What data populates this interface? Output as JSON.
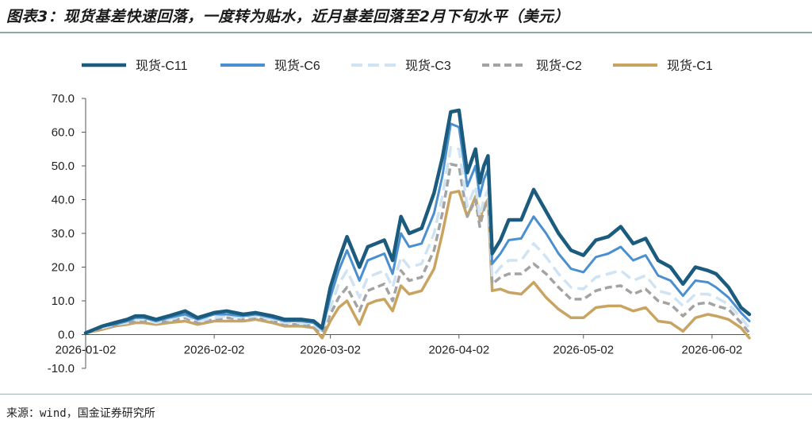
{
  "title": "图表3：现货基差快速回落，一度转为贴水，近月基差回落至2月下旬水平（美元）",
  "source": "来源：wind，国金证券研究所",
  "chart_data": {
    "type": "line",
    "x_tick_labels": [
      "2026-01-02",
      "2026-02-02",
      "2026-03-02",
      "2026-04-02",
      "2026-05-02",
      "2026-06-02"
    ],
    "x_tick_dates": [
      "2026-01-02",
      "2026-02-02",
      "2026-03-02",
      "2026-04-02",
      "2026-05-02",
      "2026-06-02"
    ],
    "y_tick_labels": [
      "70.0",
      "60.0",
      "50.0",
      "40.0",
      "30.0",
      "20.0",
      "10.0",
      "0.0",
      "-10.0"
    ],
    "ylim": [
      -10,
      70
    ],
    "xlim": [
      "2026-01-02",
      "2026-06-11"
    ],
    "grid": false,
    "legend_position": "top",
    "x": [
      "2026-01-02",
      "2026-01-06",
      "2026-01-09",
      "2026-01-12",
      "2026-01-14",
      "2026-01-16",
      "2026-01-19",
      "2026-01-22",
      "2026-01-26",
      "2026-01-29",
      "2026-02-02",
      "2026-02-05",
      "2026-02-09",
      "2026-02-12",
      "2026-02-16",
      "2026-02-19",
      "2026-02-23",
      "2026-02-26",
      "2026-02-28",
      "2026-03-02",
      "2026-03-04",
      "2026-03-06",
      "2026-03-09",
      "2026-03-11",
      "2026-03-13",
      "2026-03-15",
      "2026-03-17",
      "2026-03-19",
      "2026-03-21",
      "2026-03-24",
      "2026-03-27",
      "2026-03-29",
      "2026-03-31",
      "2026-04-02",
      "2026-04-04",
      "2026-04-06",
      "2026-04-07",
      "2026-04-08",
      "2026-04-09",
      "2026-04-10",
      "2026-04-12",
      "2026-04-14",
      "2026-04-17",
      "2026-04-20",
      "2026-04-23",
      "2026-04-26",
      "2026-04-29",
      "2026-05-02",
      "2026-05-05",
      "2026-05-08",
      "2026-05-11",
      "2026-05-14",
      "2026-05-17",
      "2026-05-20",
      "2026-05-23",
      "2026-05-26",
      "2026-05-29",
      "2026-06-01",
      "2026-06-03",
      "2026-06-06",
      "2026-06-09",
      "2026-06-11"
    ],
    "series": [
      {
        "name": "现货-C11",
        "color": "#1a5b7e",
        "width": 4.5,
        "dash": "",
        "values": [
          0.5,
          2.5,
          3.5,
          4.5,
          5.5,
          5.5,
          4.5,
          5.5,
          7.0,
          5.0,
          6.5,
          7.0,
          6.0,
          6.5,
          5.5,
          4.5,
          4.5,
          4.0,
          2.0,
          14.0,
          22.0,
          29.0,
          20.0,
          26.0,
          27.0,
          28.0,
          22.0,
          35.0,
          30.0,
          31.5,
          42.0,
          52.5,
          66.0,
          66.5,
          48.0,
          55.0,
          45.0,
          50.0,
          53.0,
          24.0,
          28.0,
          34.0,
          34.0,
          43.0,
          36.5,
          30.0,
          25.0,
          23.5,
          28.0,
          29.0,
          32.0,
          27.0,
          28.5,
          22.0,
          20.0,
          15.0,
          20.0,
          19.0,
          18.0,
          14.0,
          8.0,
          6.0
        ]
      },
      {
        "name": "现货-C6",
        "color": "#4a8fd0",
        "width": 3,
        "dash": "",
        "values": [
          0.5,
          2.5,
          3.0,
          4.0,
          5.0,
          5.0,
          4.0,
          5.0,
          6.0,
          4.5,
          6.0,
          6.0,
          5.5,
          6.0,
          5.0,
          4.0,
          4.0,
          3.5,
          1.5,
          11.0,
          19.0,
          25.0,
          16.0,
          22.0,
          23.0,
          24.0,
          18.0,
          30.0,
          26.0,
          27.0,
          36.0,
          47.0,
          62.5,
          61.5,
          44.0,
          50.0,
          41.0,
          46.0,
          49.0,
          21.0,
          24.0,
          28.0,
          28.5,
          35.0,
          30.0,
          24.0,
          19.5,
          18.5,
          23.0,
          24.0,
          26.0,
          22.0,
          23.5,
          17.5,
          16.0,
          11.5,
          16.0,
          15.5,
          14.0,
          11.0,
          6.5,
          4.0
        ]
      },
      {
        "name": "现货-C3",
        "color": "#cfe3f3",
        "width": 3.5,
        "dash": "14,7",
        "values": [
          0.5,
          2.0,
          3.0,
          3.5,
          4.5,
          4.5,
          3.5,
          4.5,
          5.5,
          4.0,
          5.0,
          5.5,
          5.0,
          5.5,
          4.5,
          3.5,
          3.5,
          3.0,
          1.0,
          8.0,
          15.0,
          19.0,
          11.0,
          17.0,
          18.0,
          19.0,
          14.0,
          23.0,
          20.0,
          21.0,
          30.0,
          41.0,
          55.5,
          55.0,
          38.0,
          44.0,
          35.0,
          40.0,
          43.0,
          17.0,
          20.0,
          22.0,
          22.0,
          27.0,
          23.0,
          18.0,
          14.0,
          13.5,
          17.0,
          18.0,
          19.0,
          16.0,
          17.5,
          13.0,
          12.0,
          8.5,
          12.0,
          12.0,
          11.0,
          9.0,
          5.0,
          2.0
        ]
      },
      {
        "name": "现货-C2",
        "color": "#a3a3a3",
        "width": 3.5,
        "dash": "9,5",
        "values": [
          0.5,
          2.0,
          2.5,
          3.5,
          4.0,
          4.0,
          3.5,
          4.0,
          5.0,
          3.5,
          4.5,
          5.0,
          4.5,
          5.0,
          4.0,
          3.0,
          3.0,
          2.5,
          0.5,
          6.0,
          11.0,
          14.0,
          7.0,
          13.0,
          14.0,
          15.0,
          10.0,
          19.0,
          16.0,
          17.0,
          25.0,
          36.0,
          50.5,
          50.0,
          35.0,
          40.0,
          32.0,
          37.0,
          40.0,
          15.0,
          17.0,
          18.0,
          18.0,
          21.0,
          18.0,
          14.0,
          10.5,
          10.5,
          13.0,
          14.0,
          14.5,
          12.0,
          13.5,
          10.0,
          9.0,
          5.5,
          9.0,
          9.5,
          8.5,
          7.5,
          3.5,
          0.5
        ]
      },
      {
        "name": "现货-C1",
        "color": "#c9a461",
        "width": 3.5,
        "dash": "",
        "values": [
          0.5,
          1.5,
          2.5,
          3.0,
          3.5,
          3.5,
          3.0,
          3.5,
          4.0,
          3.0,
          4.0,
          4.0,
          4.0,
          4.5,
          3.5,
          2.5,
          2.5,
          2.0,
          -1.0,
          4.0,
          8.0,
          10.0,
          3.0,
          9.0,
          10.0,
          10.5,
          7.0,
          14.5,
          12.0,
          13.0,
          19.5,
          30.0,
          42.0,
          42.5,
          35.0,
          41.0,
          34.0,
          38.0,
          40.0,
          13.0,
          13.5,
          12.5,
          12.0,
          15.5,
          11.0,
          7.5,
          5.0,
          5.0,
          8.0,
          8.5,
          8.5,
          7.0,
          8.0,
          4.0,
          3.5,
          1.0,
          5.0,
          6.0,
          5.5,
          4.5,
          2.0,
          -1.0
        ]
      }
    ]
  }
}
